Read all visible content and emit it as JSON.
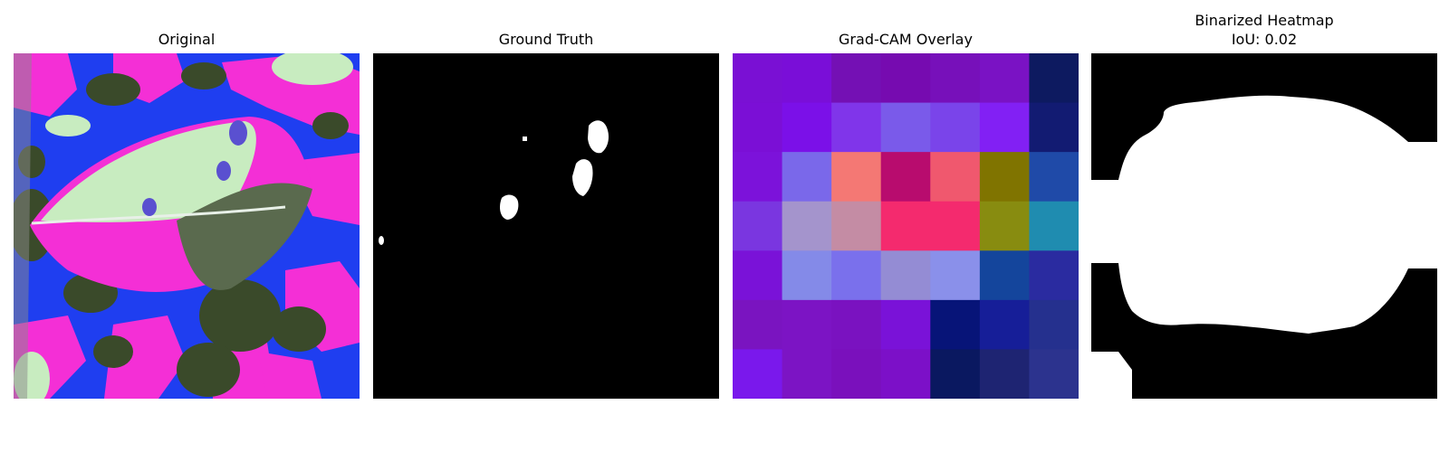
{
  "panels": [
    {
      "title": "Original"
    },
    {
      "title": "Ground Truth"
    },
    {
      "title": "Grad-CAM Overlay"
    },
    {
      "title": "Binarized Heatmap",
      "subtitle": "IoU: 0.02"
    }
  ],
  "gradcam": {
    "grid_colors": [
      [
        "#7a10d4",
        "#7a0ed8",
        "#7410b4",
        "#760bb0",
        "#7710ba",
        "#7a12c4",
        "#0d1a60"
      ],
      [
        "#7b0fd6",
        "#7b10e8",
        "#8035ea",
        "#7a5aea",
        "#7a44ea",
        "#8220f4",
        "#121b72"
      ],
      [
        "#7c12da",
        "#7a68ea",
        "#f47874",
        "#b80c6e",
        "#f0586e",
        "#807400",
        "#1f4aa8"
      ],
      [
        "#7a36e0",
        "#a494cc",
        "#c48ca4",
        "#f42a6e",
        "#f42a6e",
        "#888c10",
        "#1f8cb0"
      ],
      [
        "#7a12d8",
        "#848ae8",
        "#7a70ec",
        "#948cd4",
        "#8a90ea",
        "#14459c",
        "#2a2ba0"
      ],
      [
        "#7a14c0",
        "#7c14c4",
        "#7a12c0",
        "#7a12d8",
        "#071478",
        "#161e98",
        "#25308e"
      ],
      [
        "#7a18ec",
        "#7c14c4",
        "#7a10bc",
        "#7c10c8",
        "#0a1860",
        "#1e2472",
        "#2c338e"
      ]
    ]
  },
  "colors": {
    "mask_white": "#ffffff",
    "mask_black": "#000000",
    "original_blue": "#1f3ef0",
    "original_magenta": "#f42fd6",
    "original_dark": "#3a4a2a",
    "original_pale": "#c8ecc0"
  }
}
